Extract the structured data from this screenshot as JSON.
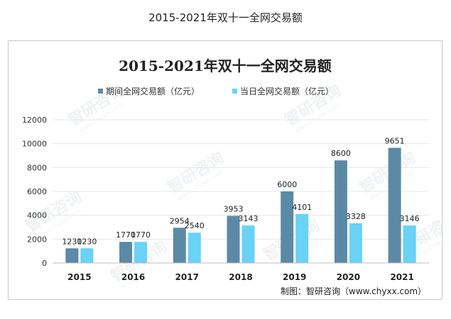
{
  "page_title": "2015-2021年双十一全网交易额",
  "watermark_text": "智研咨询",
  "watermark_url": "www.chyxx.com",
  "credit": "制图：智研咨询（www.chyxx.com）",
  "colors": {
    "series1": "#5b8aa6",
    "series2": "#69d2f5",
    "grid": "#e6e6e6",
    "axis": "#bfbfbf"
  },
  "chart_data": {
    "type": "bar",
    "title": "2015-2021年双十一全网交易额",
    "categories": [
      "2015",
      "2016",
      "2017",
      "2018",
      "2019",
      "2020",
      "2021"
    ],
    "series": [
      {
        "name": "期间全网交易额（亿元）",
        "values": [
          1230,
          1770,
          2954,
          3953,
          6000,
          8600,
          9651
        ]
      },
      {
        "name": "当日全网交易额（亿元）",
        "values": [
          1230,
          1770,
          2540,
          3143,
          4101,
          3328,
          3146
        ]
      }
    ],
    "yticks": [
      0,
      2000,
      4000,
      6000,
      8000,
      10000,
      12000
    ],
    "ylim": [
      0,
      12000
    ],
    "xlabel": "",
    "ylabel": "",
    "grid": true,
    "legend": "top-center"
  }
}
